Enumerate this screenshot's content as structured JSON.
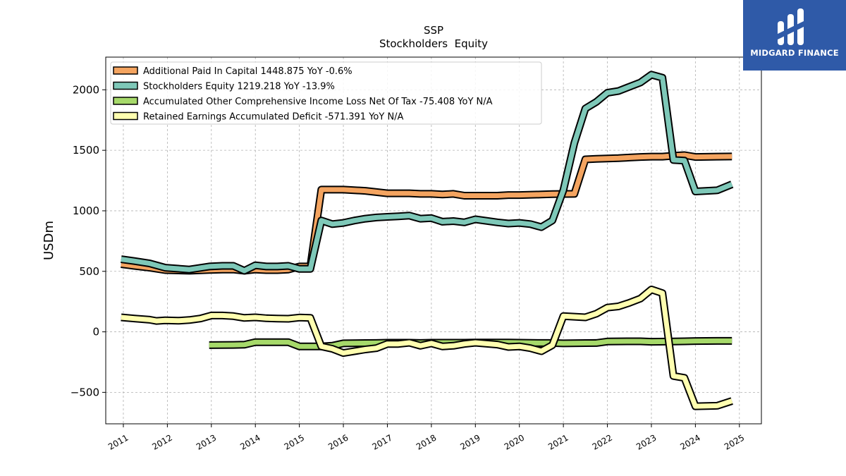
{
  "brand": {
    "name": "MIDGARD FINANCE",
    "bg_color": "#2f5aa8"
  },
  "chart_data": {
    "type": "line",
    "title": "SSP",
    "subtitle": "Stockholders  Equity",
    "ylabel": "USDm",
    "xlabel": "",
    "xlim": [
      2010.6,
      2025.5
    ],
    "ylim": [
      -760,
      2270
    ],
    "x_ticks": [
      2011,
      2012,
      2013,
      2014,
      2015,
      2016,
      2017,
      2018,
      2019,
      2020,
      2021,
      2022,
      2023,
      2024,
      2025
    ],
    "y_ticks": [
      -500,
      0,
      500,
      1000,
      1500,
      2000
    ],
    "y_tick_labels": [
      "−500",
      "0",
      "500",
      "1000",
      "1500",
      "2000"
    ],
    "grid": true,
    "legend_position": "top-left",
    "series": [
      {
        "name": "Additional Paid In Capital",
        "legend": "Additional Paid In Capital  1448.875 YoY -0.6%",
        "color": "#f4a460",
        "x": [
          2010.95,
          2011.25,
          2011.6,
          2011.95,
          2012.5,
          2012.95,
          2013.25,
          2013.5,
          2013.75,
          2014.0,
          2014.25,
          2014.5,
          2014.75,
          2015.0,
          2015.25,
          2015.5,
          2016.0,
          2016.5,
          2016.75,
          2017.0,
          2017.25,
          2017.5,
          2017.75,
          2018.0,
          2018.25,
          2018.5,
          2018.75,
          2019.0,
          2019.5,
          2019.75,
          2020.0,
          2020.5,
          2020.75,
          2021.25,
          2021.5,
          2021.75,
          2022.0,
          2022.25,
          2022.5,
          2022.75,
          2023.0,
          2023.25,
          2023.5,
          2023.75,
          2024.0,
          2024.5,
          2024.83
        ],
        "y": [
          560,
          545,
          530,
          510,
          505,
          512,
          515,
          515,
          505,
          515,
          510,
          510,
          515,
          540,
          540,
          1175,
          1175,
          1165,
          1155,
          1145,
          1145,
          1145,
          1140,
          1140,
          1135,
          1140,
          1125,
          1125,
          1125,
          1130,
          1130,
          1135,
          1138,
          1140,
          1425,
          1430,
          1432,
          1435,
          1440,
          1445,
          1448,
          1448,
          1455,
          1460,
          1445,
          1448,
          1449
        ]
      },
      {
        "name": "Stockholders Equity",
        "legend": "Stockholders Equity  1219.218 YoY -13.9%",
        "color": "#7ec8b8",
        "x": [
          2010.95,
          2011.25,
          2011.6,
          2011.95,
          2012.5,
          2012.95,
          2013.25,
          2013.5,
          2013.75,
          2014.0,
          2014.25,
          2014.5,
          2014.75,
          2015.0,
          2015.25,
          2015.5,
          2015.75,
          2016.0,
          2016.25,
          2016.5,
          2016.75,
          2017.0,
          2017.25,
          2017.5,
          2017.75,
          2018.0,
          2018.25,
          2018.5,
          2018.75,
          2019.0,
          2019.5,
          2019.75,
          2020.0,
          2020.25,
          2020.5,
          2020.75,
          2021.0,
          2021.25,
          2021.5,
          2021.75,
          2022.0,
          2022.25,
          2022.5,
          2022.75,
          2023.0,
          2023.25,
          2023.5,
          2023.75,
          2024.0,
          2024.5,
          2024.83
        ],
        "y": [
          600,
          585,
          565,
          530,
          515,
          540,
          545,
          545,
          505,
          550,
          540,
          540,
          545,
          520,
          520,
          920,
          890,
          900,
          920,
          935,
          945,
          950,
          955,
          960,
          935,
          940,
          910,
          915,
          905,
          930,
          905,
          895,
          900,
          890,
          865,
          920,
          1170,
          1560,
          1845,
          1900,
          1975,
          1990,
          2025,
          2060,
          2125,
          2100,
          1420,
          1415,
          1160,
          1170,
          1219
        ]
      },
      {
        "name": "Accumulated Other Comprehensive Income Loss Net Of Tax",
        "legend": "Accumulated Other Comprehensive Income Loss Net Of Tax  -75.408 YoY N/A",
        "color": "#a6d96a",
        "x": [
          2012.95,
          2013.5,
          2013.75,
          2014.0,
          2014.5,
          2014.75,
          2015.0,
          2015.5,
          2015.75,
          2016.0,
          2016.5,
          2016.75,
          2017.0,
          2017.5,
          2017.75,
          2018.0,
          2018.5,
          2018.75,
          2019.0,
          2019.5,
          2019.75,
          2020.0,
          2020.5,
          2020.75,
          2021.0,
          2021.5,
          2021.75,
          2022.0,
          2022.5,
          2022.75,
          2023.0,
          2023.5,
          2023.75,
          2024.0,
          2024.5,
          2024.83
        ],
        "y": [
          -110,
          -108,
          -106,
          -85,
          -85,
          -85,
          -120,
          -120,
          -115,
          -95,
          -93,
          -92,
          -90,
          -90,
          -92,
          -90,
          -90,
          -90,
          -88,
          -88,
          -88,
          -90,
          -92,
          -92,
          -95,
          -93,
          -92,
          -80,
          -78,
          -78,
          -82,
          -80,
          -78,
          -76,
          -75,
          -75
        ]
      },
      {
        "name": "Retained Earnings Accumulated Deficit",
        "legend": "Retained Earnings Accumulated Deficit  -571.391 YoY N/A",
        "color": "#ffffb0",
        "x": [
          2010.95,
          2011.25,
          2011.6,
          2011.75,
          2011.95,
          2012.25,
          2012.5,
          2012.75,
          2013.0,
          2013.25,
          2013.5,
          2013.75,
          2014.0,
          2014.25,
          2014.5,
          2014.75,
          2015.0,
          2015.25,
          2015.5,
          2015.75,
          2016.0,
          2016.5,
          2016.75,
          2017.0,
          2017.25,
          2017.5,
          2017.75,
          2018.0,
          2018.25,
          2018.5,
          2018.75,
          2019.0,
          2019.5,
          2019.75,
          2020.0,
          2020.25,
          2020.5,
          2020.75,
          2021.0,
          2021.5,
          2021.75,
          2022.0,
          2022.25,
          2022.5,
          2022.75,
          2023.0,
          2023.25,
          2023.5,
          2023.75,
          2024.0,
          2024.5,
          2024.83
        ],
        "y": [
          120,
          110,
          100,
          90,
          95,
          92,
          98,
          110,
          135,
          135,
          130,
          115,
          120,
          112,
          110,
          108,
          118,
          115,
          -120,
          -140,
          -175,
          -145,
          -135,
          -100,
          -100,
          -90,
          -115,
          -95,
          -120,
          -115,
          -100,
          -90,
          -105,
          -125,
          -120,
          -135,
          -160,
          -110,
          130,
          120,
          150,
          200,
          210,
          240,
          275,
          350,
          320,
          -365,
          -380,
          -615,
          -610,
          -571
        ]
      }
    ]
  }
}
